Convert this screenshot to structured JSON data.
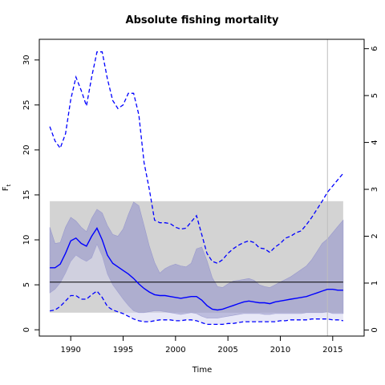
{
  "chart_data": {
    "type": "line",
    "title": "Absolute fishing mortality",
    "xlabel": "Time",
    "ylabel": "F",
    "ylabel_subscript": "t",
    "xlim": [
      1987,
      2018
    ],
    "ylim": [
      -0.7,
      32.3
    ],
    "y2lim": [
      -0.13,
      6.2
    ],
    "x_ticks": [
      1990,
      1995,
      2000,
      2005,
      2010,
      2015
    ],
    "x_tick_labels": [
      "1990",
      "1995",
      "2000",
      "2005",
      "2010",
      "2015"
    ],
    "y_ticks": [
      0,
      5,
      10,
      15,
      20,
      25,
      30
    ],
    "y_tick_labels": [
      "0",
      "5",
      "10",
      "15",
      "20",
      "25",
      "30"
    ],
    "y2_ticks": [
      0,
      1,
      2,
      3,
      4,
      5,
      6
    ],
    "y2_tick_labels": [
      "0",
      "1",
      "2",
      "3",
      "4",
      "5",
      "6"
    ],
    "reference_box": {
      "x0": 1988,
      "x1": 2016,
      "y0": 1.9,
      "y1": 14.3,
      "color": "#d3d3d3"
    },
    "reference_line": {
      "y": 5.3,
      "x0": 1988,
      "x1": 2016,
      "color": "#000000"
    },
    "vertical_line": {
      "x": 2014.5,
      "color": "#bebebe"
    },
    "colors": {
      "estimate": "#0000ff",
      "ci_band": "#9999cc",
      "ci_band_light": "#ccccee"
    },
    "x": [
      1988,
      1988.5,
      1989,
      1989.5,
      1990,
      1990.5,
      1991,
      1991.5,
      1992,
      1992.5,
      1993,
      1993.5,
      1994,
      1994.5,
      1995,
      1995.5,
      1996,
      1996.5,
      1997,
      1997.5,
      1998,
      1998.5,
      1999,
      1999.5,
      2000,
      2000.5,
      2001,
      2001.5,
      2002,
      2002.5,
      2003,
      2003.5,
      2004,
      2004.5,
      2005,
      2005.5,
      2006,
      2006.5,
      2007,
      2007.5,
      2008,
      2008.5,
      2009,
      2009.5,
      2010,
      2010.5,
      2011,
      2011.5,
      2012,
      2012.5,
      2013,
      2013.5,
      2014,
      2014.5,
      2015,
      2015.5,
      2016
    ],
    "series": [
      {
        "values": [
          6.9,
          6.9,
          7.3,
          8.5,
          9.9,
          10.2,
          9.6,
          9.3,
          10.4,
          11.3,
          10.0,
          8.3,
          7.4,
          7.0,
          6.6,
          6.2,
          5.7,
          5.1,
          4.6,
          4.2,
          3.9,
          3.8,
          3.8,
          3.7,
          3.6,
          3.5,
          3.6,
          3.7,
          3.7,
          3.3,
          2.7,
          2.3,
          2.2,
          2.3,
          2.5,
          2.7,
          2.9,
          3.1,
          3.2,
          3.1,
          3.0,
          3.0,
          2.9,
          3.1,
          3.2,
          3.3,
          3.4,
          3.5,
          3.6,
          3.7,
          3.9,
          4.1,
          4.3,
          4.5,
          4.5,
          4.4,
          4.4
        ]
      },
      {
        "values": [
          22.6,
          21.0,
          20.2,
          21.8,
          25.6,
          28.1,
          26.6,
          24.9,
          28.1,
          30.9,
          30.9,
          27.9,
          25.5,
          24.6,
          25.0,
          26.3,
          26.3,
          23.9,
          18.6,
          15.6,
          12.2,
          11.9,
          11.9,
          11.8,
          11.4,
          11.2,
          11.3,
          12.0,
          12.7,
          10.6,
          8.5,
          7.6,
          7.4,
          7.8,
          8.5,
          9.0,
          9.4,
          9.7,
          9.9,
          9.7,
          9.1,
          9.0,
          8.6,
          9.2,
          9.6,
          10.2,
          10.4,
          10.8,
          11.0,
          11.7,
          12.5,
          13.4,
          14.3,
          15.3,
          16.0,
          16.7,
          17.4
        ]
      },
      {
        "values": [
          2.1,
          2.2,
          2.6,
          3.2,
          3.8,
          3.8,
          3.4,
          3.4,
          3.9,
          4.3,
          3.6,
          2.6,
          2.2,
          2.0,
          1.8,
          1.5,
          1.2,
          1.0,
          0.9,
          0.9,
          1.0,
          1.1,
          1.1,
          1.1,
          1.0,
          1.0,
          1.1,
          1.1,
          1.0,
          0.8,
          0.6,
          0.6,
          0.6,
          0.6,
          0.7,
          0.7,
          0.8,
          0.9,
          0.9,
          0.9,
          0.9,
          0.9,
          0.9,
          0.9,
          1.0,
          1.0,
          1.1,
          1.1,
          1.1,
          1.1,
          1.2,
          1.2,
          1.2,
          1.2,
          1.1,
          1.1,
          1.0
        ]
      },
      {
        "values": [
          11.4,
          9.6,
          9.7,
          11.4,
          12.5,
          12.1,
          11.4,
          10.9,
          12.4,
          13.4,
          13.0,
          11.6,
          10.6,
          10.4,
          11.2,
          12.8,
          14.2,
          13.8,
          11.6,
          9.3,
          7.5,
          6.3,
          6.8,
          7.1,
          7.3,
          7.1,
          7.0,
          7.4,
          9.0,
          9.2,
          7.7,
          5.8,
          4.8,
          4.7,
          5.1,
          5.4,
          5.5,
          5.6,
          5.7,
          5.5,
          5.0,
          4.8,
          4.7,
          5.0,
          5.3,
          5.6,
          5.9,
          6.3,
          6.7,
          7.1,
          7.8,
          8.7,
          9.6,
          10.1,
          10.8,
          11.5,
          12.2
        ]
      },
      {
        "values": [
          4.1,
          4.5,
          5.2,
          6.3,
          7.6,
          8.3,
          7.9,
          7.6,
          8.0,
          9.5,
          8.2,
          6.2,
          5.0,
          4.2,
          3.4,
          2.7,
          2.1,
          1.9,
          1.9,
          2.0,
          2.1,
          2.1,
          2.0,
          1.9,
          1.8,
          1.7,
          1.8,
          1.9,
          1.8,
          1.5,
          1.3,
          1.3,
          1.3,
          1.4,
          1.5,
          1.6,
          1.7,
          1.8,
          1.8,
          1.8,
          1.8,
          1.7,
          1.7,
          1.8,
          1.8,
          1.8,
          1.8,
          1.8,
          1.8,
          1.9,
          1.9,
          1.9,
          1.9,
          2.0,
          1.8,
          1.8,
          1.8
        ]
      }
    ]
  }
}
